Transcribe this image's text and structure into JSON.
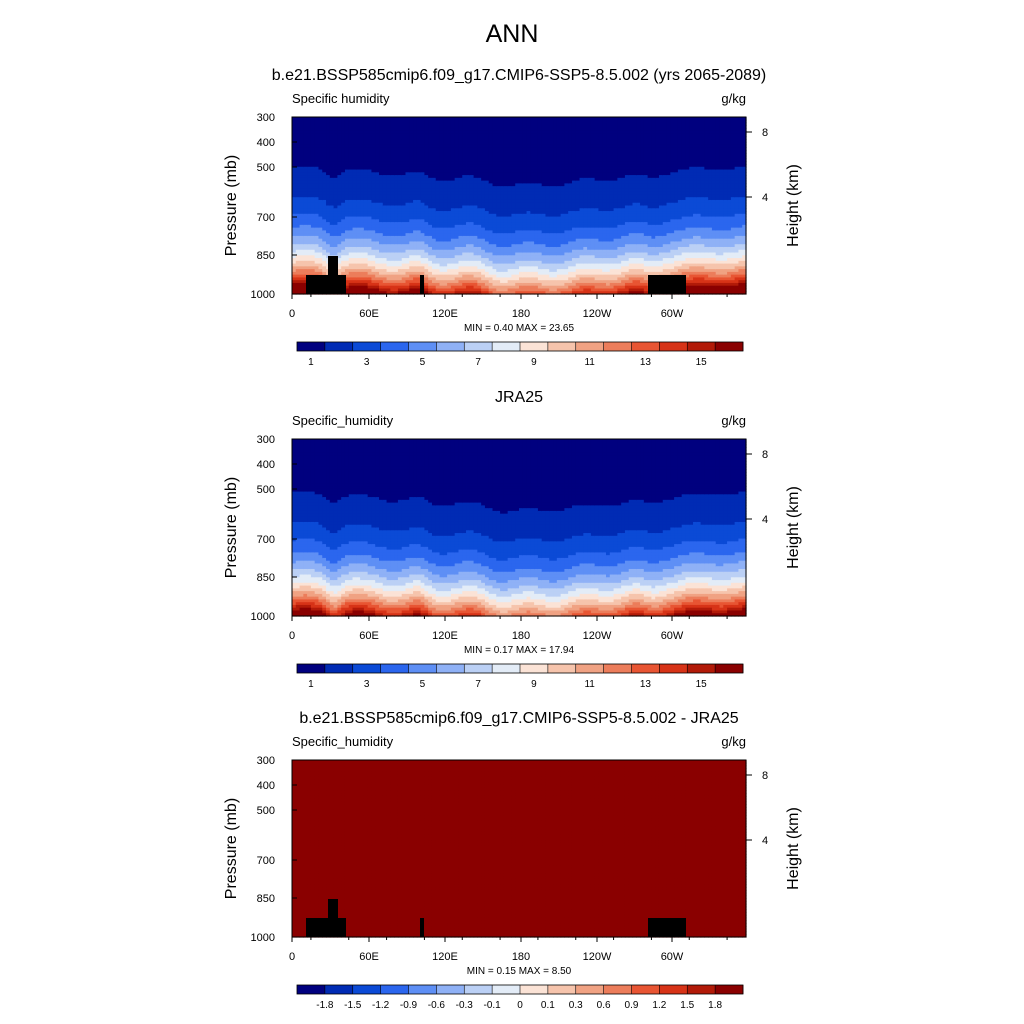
{
  "figure": {
    "title": "ANN"
  },
  "colors": {
    "absolute_scale": [
      "#00007f",
      "#002bb4",
      "#0b4ad6",
      "#2b66ee",
      "#5e8ff5",
      "#8fb1f6",
      "#bbd0f5",
      "#e3ecf7",
      "#fbe3d6",
      "#f6c4ac",
      "#f0a283",
      "#ec7d5b",
      "#e85533",
      "#d73317",
      "#b21a08",
      "#8a0000"
    ],
    "difference_scale": [
      "#00007f",
      "#002bb4",
      "#0b4ad6",
      "#2b66ee",
      "#5e8ff5",
      "#8fb1f6",
      "#bbd0f5",
      "#e3ecf7",
      "#fbe3d6",
      "#f6c4ac",
      "#f0a283",
      "#ec7d5b",
      "#e85533",
      "#d73317",
      "#b21a08",
      "#8a0000"
    ],
    "terrain": "#000000"
  },
  "chart_data": [
    {
      "type": "heatmap",
      "title": "b.e21.BSSP585cmip6.f09_g17.CMIP6-SSP5-8.5.002 (yrs 2065-2089)",
      "variable_label": "Specific humidity",
      "units": "g/kg",
      "ylabel": "Pressure (mb)",
      "y2label": "Height (km)",
      "x_ticks": [
        "0",
        "60E",
        "120E",
        "180",
        "120W",
        "60W"
      ],
      "y_ticks": [
        "300",
        "400",
        "500",
        "700",
        "850",
        "1000"
      ],
      "y2_ticks": [
        "8",
        "4"
      ],
      "ylim": [
        1000,
        300
      ],
      "stats": "MIN =   0.40  MAX =  23.65",
      "min": 0.4,
      "max": 23.65,
      "colorbar_levels": [
        0,
        1,
        2,
        3,
        4,
        5,
        6,
        7,
        8,
        9,
        10,
        11,
        12,
        13,
        14,
        15
      ],
      "colorbar_labels": [
        "1",
        "3",
        "5",
        "7",
        "9",
        "11",
        "13",
        "15"
      ],
      "scale": "absolute_scale",
      "terrain": "model"
    },
    {
      "type": "heatmap",
      "title": "JRA25",
      "variable_label": "Specific_humidity",
      "units": "g/kg",
      "ylabel": "Pressure (mb)",
      "y2label": "Height (km)",
      "x_ticks": [
        "0",
        "60E",
        "120E",
        "180",
        "120W",
        "60W"
      ],
      "y_ticks": [
        "300",
        "400",
        "500",
        "700",
        "850",
        "1000"
      ],
      "y2_ticks": [
        "8",
        "4"
      ],
      "ylim": [
        1000,
        300
      ],
      "stats": "MIN =   0.17  MAX =  17.94",
      "min": 0.17,
      "max": 17.94,
      "colorbar_levels": [
        0,
        1,
        2,
        3,
        4,
        5,
        6,
        7,
        8,
        9,
        10,
        11,
        12,
        13,
        14,
        15
      ],
      "colorbar_labels": [
        "1",
        "3",
        "5",
        "7",
        "9",
        "11",
        "13",
        "15"
      ],
      "scale": "absolute_scale",
      "terrain": "none"
    },
    {
      "type": "heatmap",
      "title": "b.e21.BSSP585cmip6.f09_g17.CMIP6-SSP5-8.5.002 - JRA25",
      "variable_label": "Specific_humidity",
      "units": "g/kg",
      "ylabel": "Pressure (mb)",
      "y2label": "Height (km)",
      "x_ticks": [
        "0",
        "60E",
        "120E",
        "180",
        "120W",
        "60W"
      ],
      "y_ticks": [
        "300",
        "400",
        "500",
        "700",
        "850",
        "1000"
      ],
      "y2_ticks": [
        "8",
        "4"
      ],
      "ylim": [
        1000,
        300
      ],
      "stats": "MIN =   0.15  MAX =   8.50",
      "min": 0.15,
      "max": 8.5,
      "colorbar_levels": [
        -2.1,
        -1.8,
        -1.5,
        -1.2,
        -0.9,
        -0.6,
        -0.3,
        -0.1,
        0,
        0.1,
        0.3,
        0.6,
        0.9,
        1.2,
        1.5,
        1.8
      ],
      "colorbar_labels": [
        "-1.8",
        "-1.5",
        "-1.2",
        "-0.9",
        "-0.6",
        "-0.3",
        "-0.1",
        "0",
        "0.1",
        "0.3",
        "0.6",
        "0.9",
        "1.2",
        "1.5",
        "1.8"
      ],
      "scale": "difference_scale",
      "terrain": "model"
    }
  ]
}
